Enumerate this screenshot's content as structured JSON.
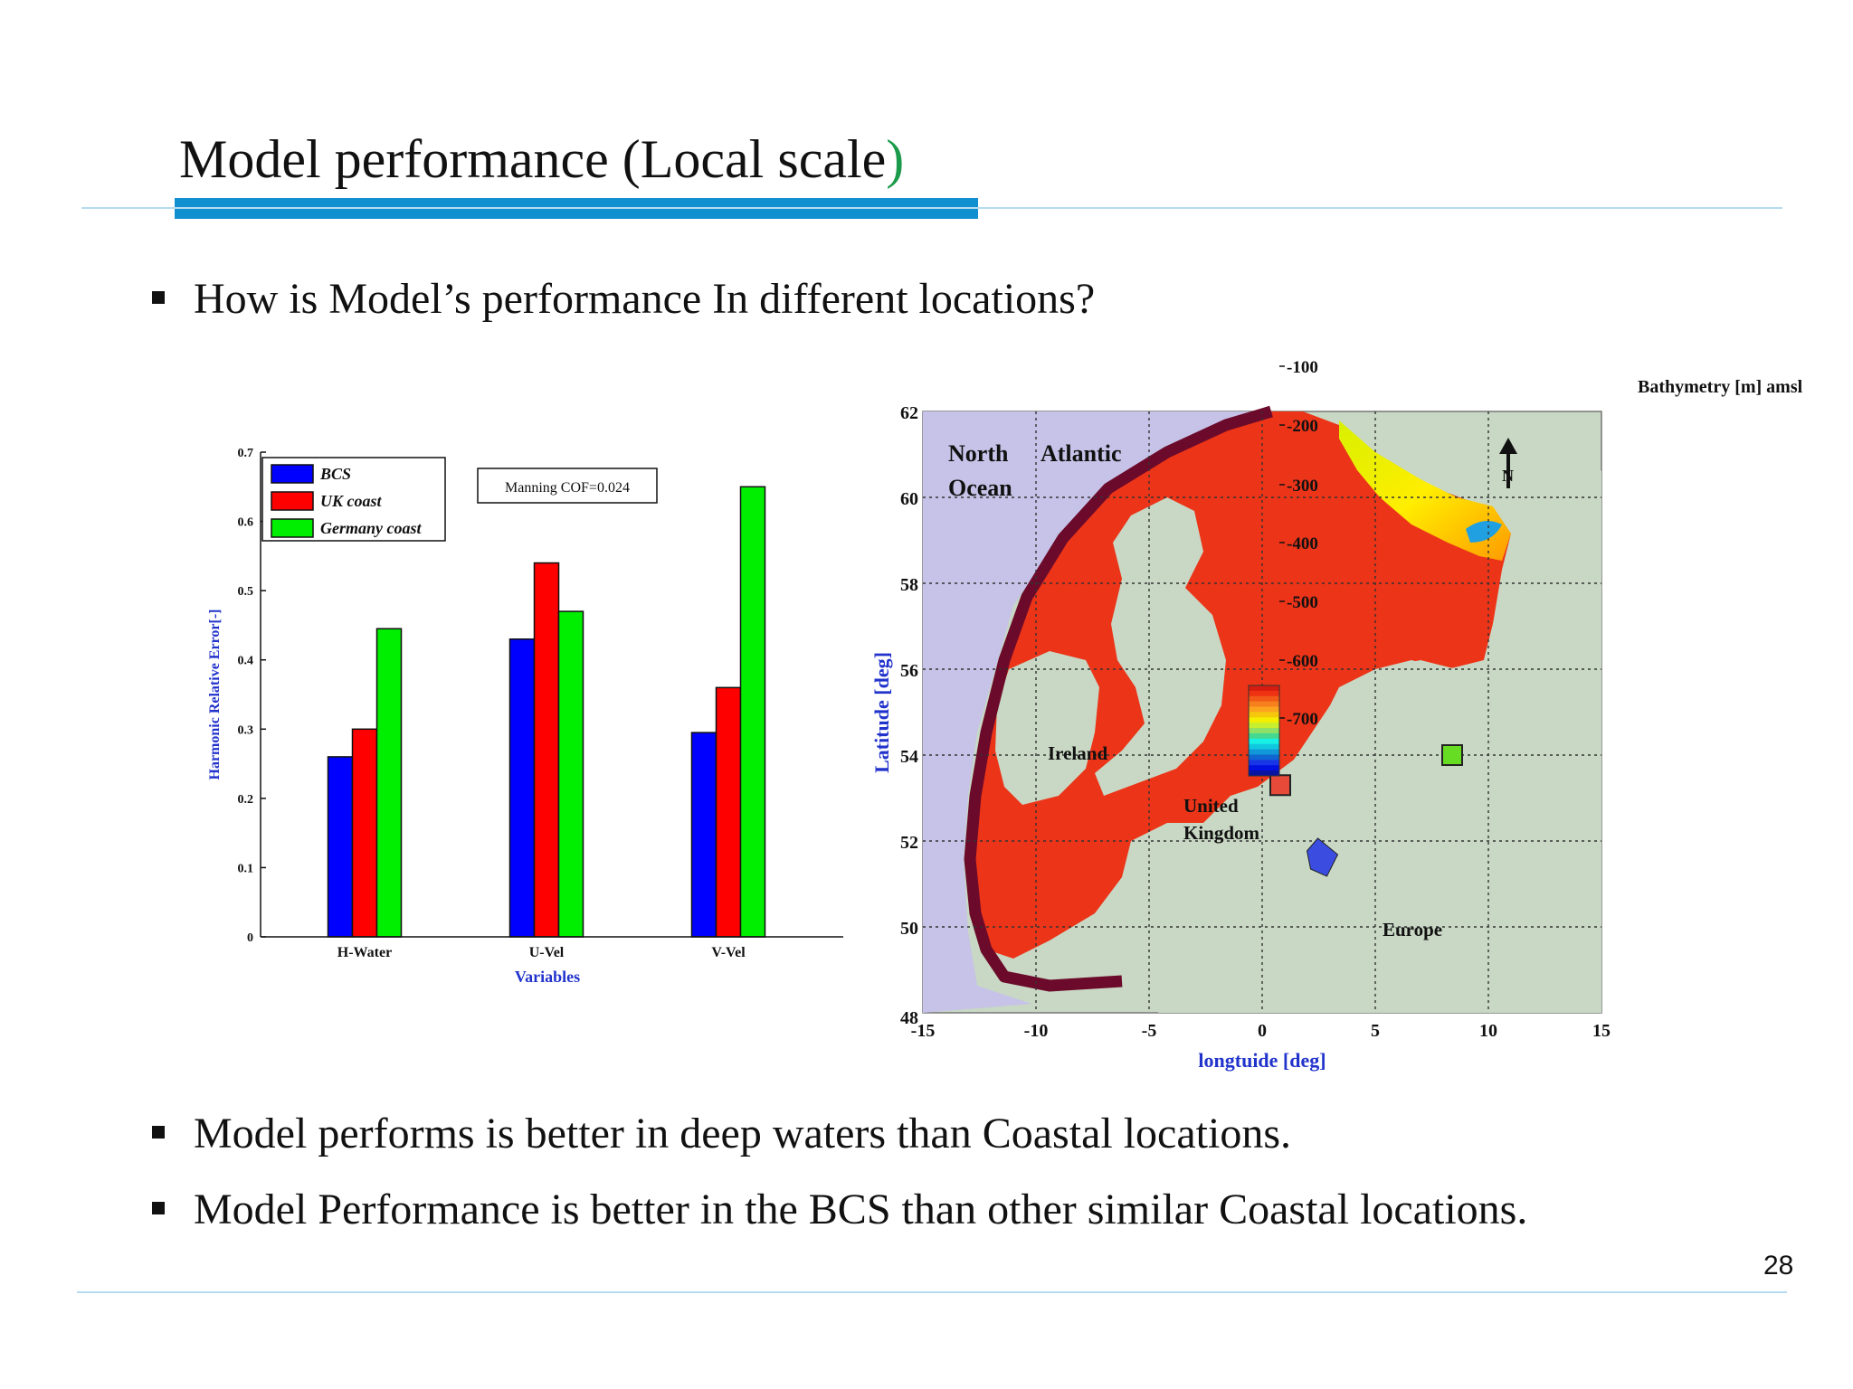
{
  "slide": {
    "title": "Model performance (Local scale",
    "title_paren": ")",
    "bullet_1": "How is Model’s performance In different locations?",
    "bullet_2": "Model performs is better in deep waters than Coastal locations.",
    "bullet_3": "Model Performance is better in the BCS than other similar Coastal locations.",
    "page_number": "28"
  },
  "chart_data": [
    {
      "type": "bar",
      "categories": [
        "H-Water",
        "U-Vel",
        "V-Vel"
      ],
      "xlabel": "Variables",
      "ylabel": "Harmonic Relative Error[-]",
      "ylim": [
        0,
        0.7
      ],
      "yticks": [
        "0",
        "0.1",
        "0.2",
        "0.3",
        "0.4",
        "0.5",
        "0.6",
        "0.7"
      ],
      "annotation": "Manning COF=0.024",
      "legend_position": "top-left",
      "series": [
        {
          "name": "BCS",
          "color": "#0000ff",
          "values": [
            0.26,
            0.43,
            0.295
          ]
        },
        {
          "name": "UK coast",
          "color": "#ff0000",
          "values": [
            0.3,
            0.54,
            0.36
          ]
        },
        {
          "name": "Germany coast",
          "color": "#00ee00",
          "values": [
            0.445,
            0.47,
            0.65
          ]
        }
      ]
    },
    {
      "type": "heatmap",
      "title": "Bathymetry [m] amsl",
      "xlabel": "longtuide [deg]",
      "ylabel": "Latitude [deg]",
      "xlim": [
        -15,
        15
      ],
      "ylim": [
        48,
        62
      ],
      "xticks": [
        "-15",
        "-10",
        "-5",
        "0",
        "5",
        "10",
        "15"
      ],
      "yticks": [
        "48",
        "50",
        "52",
        "54",
        "56",
        "58",
        "60",
        "62"
      ],
      "colorbar_ticks": [
        "-100",
        "-200",
        "-300",
        "-400",
        "-500",
        "-600",
        "-700"
      ],
      "labels": {
        "ocean_1": "North",
        "ocean_2": "Atlantic",
        "ocean_3": "Ocean",
        "ireland": "Ireland",
        "uk_1": "United",
        "uk_2": "Kingdom",
        "europe": "Europe",
        "north": "N"
      },
      "markers": [
        {
          "name": "UK coast",
          "lon": 0.8,
          "lat": 53.3,
          "color": "#e84a3a"
        },
        {
          "name": "Germany coast",
          "lon": 8.4,
          "lat": 54.0,
          "color": "#66dd22"
        },
        {
          "name": "BCS",
          "lon": 2.7,
          "lat": 51.6,
          "color": "#3a4de0"
        }
      ]
    }
  ]
}
